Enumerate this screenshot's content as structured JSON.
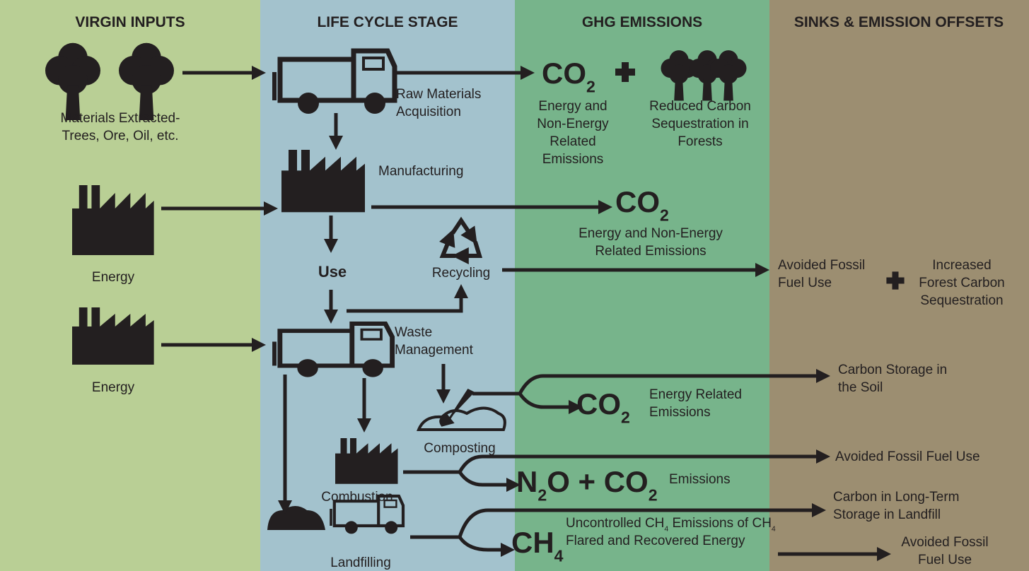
{
  "columns": [
    "VIRGIN INPUTS",
    "LIFE CYCLE STAGE",
    "GHG EMISSIONS",
    "SINKS & EMISSION OFFSETS"
  ],
  "inputs": {
    "materials": [
      "Materials Extracted-",
      "Trees, Ore, Oil, etc."
    ],
    "energy_1": [
      "Energy"
    ],
    "energy_2": [
      "Energy"
    ]
  },
  "stages": {
    "raw_materials": [
      "Raw Materials",
      "Acquisition"
    ],
    "manufacturing": [
      "Manufacturing"
    ],
    "use": [
      "Use"
    ],
    "recycling": [
      "Recycling"
    ],
    "waste_management": [
      "Waste",
      "Management"
    ],
    "composting": [
      "Composting"
    ],
    "combustion": [
      "Combustion"
    ],
    "landfilling": [
      "Landfilling"
    ]
  },
  "emissions": {
    "co2_raw": [
      [
        "CO",
        "2"
      ]
    ],
    "raw_text": [
      "Energy and",
      "Non-Energy",
      "Related",
      "Emissions"
    ],
    "forests": [
      "Reduced Carbon",
      "Sequestration in",
      "Forests"
    ],
    "co2_mfg": [
      [
        "CO",
        "2"
      ]
    ],
    "mfg_text": [
      "Energy and Non-Energy",
      "Related Emissions"
    ],
    "co2_compost": [
      [
        "CO",
        "2"
      ]
    ],
    "compost_text": [
      "Energy Related",
      "Emissions"
    ],
    "combustion_formula": [
      [
        "N",
        "2",
        "O + CO",
        "2"
      ]
    ],
    "combustion_text": [
      "Emissions"
    ],
    "ch4": [
      [
        "CH",
        "4"
      ]
    ],
    "landfill_text": [
      [
        "Uncontrolled CH",
        "4",
        " Emissions of CH",
        "4"
      ],
      "Flared and Recovered Energy"
    ]
  },
  "sinks": {
    "recycling_avoided": [
      "Avoided Fossil",
      "Fuel Use"
    ],
    "recycling_forest": [
      "Increased",
      "Forest Carbon",
      "Sequestration"
    ],
    "soil": [
      "Carbon Storage in",
      "the Soil"
    ],
    "combustion_avoided": [
      "Avoided Fossil Fuel Use"
    ],
    "landfill_storage": [
      "Carbon in Long-Term",
      "Storage in Landfill"
    ],
    "landfill_avoided": [
      "Avoided Fossil",
      "Fuel Use"
    ]
  }
}
